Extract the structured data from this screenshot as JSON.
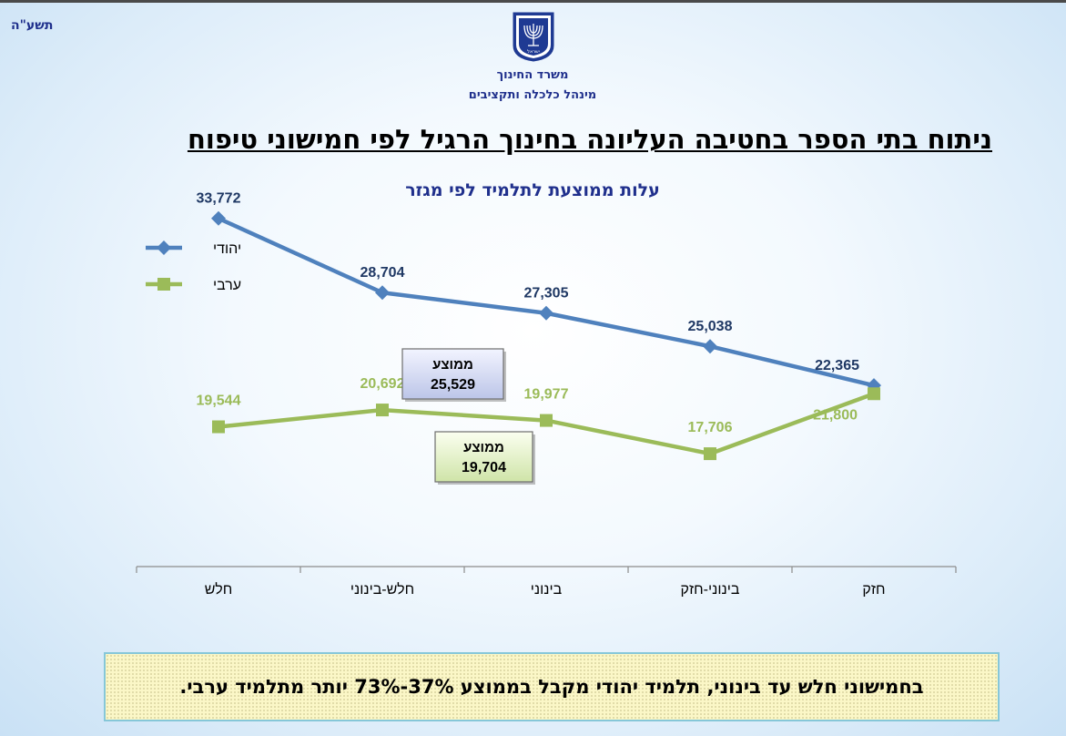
{
  "header": {
    "year": "תשע\"ה",
    "ministry_line1": "משרד החינוך",
    "ministry_line2": "מינהל כלכלה ותקציבים",
    "emblem_text": "ישראל"
  },
  "title": "ניתוח בתי הספר בחטיבה העליונה בחינוך הרגיל לפי חמישוני טיפוח",
  "footer_note": "בחמישוני חלש עד בינוני, תלמיד יהודי מקבל בממוצע 37%-73% יותר מתלמיד ערבי.",
  "colors": {
    "jewish": "#4f81bd",
    "arab": "#9bbb59",
    "title_blue": "#1f2f8c"
  },
  "chart_data": {
    "type": "line",
    "title": "עלות ממוצעת לתלמיד לפי מגזר",
    "categories": [
      "חזק",
      "בינוני-חזק",
      "בינוני",
      "חלש-בינוני",
      "חלש"
    ],
    "series": [
      {
        "name": "יהודי",
        "values": [
          22365,
          25038,
          27305,
          28704,
          33772
        ],
        "labels": [
          "22,365",
          "25,038",
          "27,305",
          "28,704",
          "33,772"
        ]
      },
      {
        "name": "ערבי",
        "values": [
          21800,
          17706,
          19977,
          20692,
          19544
        ],
        "labels": [
          "21,800",
          "17,706",
          "19,977",
          "20,692",
          "19,544"
        ]
      }
    ],
    "averages": [
      {
        "series": "יהודי",
        "label": "ממוצע",
        "value": "25,529"
      },
      {
        "series": "ערבי",
        "label": "ממוצע",
        "value": "19,704"
      }
    ],
    "ylim": [
      10000,
      35000
    ],
    "legend": "top-left",
    "grid": false,
    "xlabel": "",
    "ylabel": ""
  }
}
